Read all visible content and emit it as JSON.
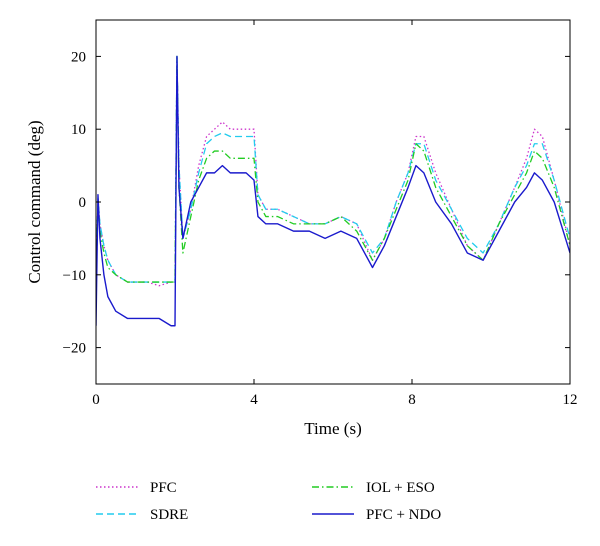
{
  "chart_data": {
    "type": "line",
    "title": "",
    "xlabel": "Time (s)",
    "ylabel": "Control command (deg)",
    "xlim": [
      0,
      12
    ],
    "ylim": [
      -25,
      25
    ],
    "xticks": [
      0,
      4,
      8,
      12
    ],
    "yticks": [
      -20,
      -10,
      0,
      10,
      20
    ],
    "xtick_labels": [
      "0",
      "4",
      "8",
      "12"
    ],
    "ytick_labels": [
      "−20",
      "−10",
      "0",
      "10",
      "20"
    ],
    "grid": false,
    "legend_position": "bottom",
    "series": [
      {
        "name": "PFC",
        "color": "#cc33cc",
        "style": "dotted",
        "x": [
          0,
          0.05,
          0.1,
          0.2,
          0.3,
          0.5,
          0.8,
          1.0,
          1.3,
          1.6,
          1.9,
          2.0,
          2.05,
          2.1,
          2.2,
          2.4,
          2.6,
          2.8,
          3.0,
          3.2,
          3.4,
          3.6,
          3.8,
          4.0,
          4.1,
          4.3,
          4.6,
          5.0,
          5.4,
          5.8,
          6.2,
          6.6,
          7.0,
          7.3,
          7.6,
          7.9,
          8.1,
          8.3,
          8.6,
          9.0,
          9.4,
          9.8,
          10.2,
          10.6,
          10.9,
          11.1,
          11.3,
          11.6,
          12.0
        ],
        "y": [
          -12,
          0.5,
          -3,
          -6,
          -8,
          -10,
          -11,
          -11,
          -11,
          -11.5,
          -11,
          -11,
          20,
          5,
          -5,
          -1,
          5,
          9,
          10,
          11,
          10,
          10,
          10,
          10,
          1,
          -1,
          -1,
          -2,
          -3,
          -3,
          -2,
          -3,
          -8,
          -5,
          0,
          4,
          9,
          9,
          4,
          -1,
          -6,
          -8,
          -3,
          2,
          6,
          10,
          9,
          3,
          -6
        ]
      },
      {
        "name": "SDRE",
        "color": "#22ccee",
        "style": "dashed",
        "x": [
          0,
          0.05,
          0.1,
          0.2,
          0.3,
          0.5,
          0.8,
          1.0,
          1.3,
          1.6,
          1.9,
          2.0,
          2.05,
          2.1,
          2.2,
          2.4,
          2.6,
          2.8,
          3.0,
          3.2,
          3.4,
          3.6,
          3.8,
          4.0,
          4.1,
          4.3,
          4.6,
          5.0,
          5.4,
          5.8,
          6.2,
          6.6,
          7.0,
          7.3,
          7.6,
          7.9,
          8.1,
          8.3,
          8.6,
          9.0,
          9.4,
          9.8,
          10.2,
          10.6,
          10.9,
          11.1,
          11.3,
          11.6,
          12.0
        ],
        "y": [
          -12,
          0.5,
          -3,
          -6,
          -8,
          -10,
          -11,
          -11,
          -11,
          -11,
          -11,
          -11,
          20,
          5,
          -5,
          -1,
          4,
          8,
          9,
          9.5,
          9,
          9,
          9,
          9,
          1,
          -1,
          -1,
          -2,
          -3,
          -3,
          -2,
          -3,
          -7,
          -5,
          0,
          4,
          8,
          8,
          3,
          -1,
          -5,
          -7,
          -3,
          2,
          5,
          8,
          8,
          3,
          -5
        ]
      },
      {
        "name": "IOL + ESO",
        "color": "#22cc22",
        "style": "dashdot",
        "x": [
          0,
          0.05,
          0.1,
          0.2,
          0.3,
          0.5,
          0.8,
          1.0,
          1.3,
          1.6,
          1.9,
          2.0,
          2.05,
          2.1,
          2.2,
          2.4,
          2.6,
          2.8,
          3.0,
          3.2,
          3.4,
          3.6,
          3.8,
          4.0,
          4.1,
          4.3,
          4.6,
          5.0,
          5.4,
          5.8,
          6.2,
          6.6,
          7.0,
          7.3,
          7.6,
          7.9,
          8.1,
          8.3,
          8.6,
          9.0,
          9.4,
          9.8,
          10.2,
          10.6,
          10.9,
          11.1,
          11.3,
          11.6,
          12.0
        ],
        "y": [
          -12,
          0,
          -4,
          -7,
          -9,
          -10,
          -11,
          -11,
          -11,
          -11,
          -11,
          -11,
          20,
          2,
          -7,
          -2,
          3,
          6,
          7,
          7,
          6,
          6,
          6,
          6,
          0,
          -2,
          -2,
          -3,
          -3,
          -3,
          -2,
          -4,
          -8,
          -5,
          -1,
          3,
          8,
          7,
          2,
          -2,
          -6,
          -8,
          -3,
          1,
          4,
          7,
          6,
          2,
          -6
        ]
      },
      {
        "name": "PFC + NDO",
        "color": "#1a1acc",
        "style": "solid",
        "x": [
          0,
          0.05,
          0.1,
          0.2,
          0.3,
          0.5,
          0.8,
          1.0,
          1.3,
          1.6,
          1.9,
          2.0,
          2.05,
          2.1,
          2.2,
          2.4,
          2.6,
          2.8,
          3.0,
          3.2,
          3.4,
          3.6,
          3.8,
          4.0,
          4.1,
          4.3,
          4.6,
          5.0,
          5.4,
          5.8,
          6.2,
          6.6,
          7.0,
          7.3,
          7.6,
          7.9,
          8.1,
          8.3,
          8.6,
          9.0,
          9.4,
          9.8,
          10.2,
          10.6,
          10.9,
          11.1,
          11.3,
          11.6,
          12.0
        ],
        "y": [
          -17,
          1,
          -5,
          -10,
          -13,
          -15,
          -16,
          -16,
          -16,
          -16,
          -17,
          -17,
          20,
          2,
          -5,
          0,
          2,
          4,
          4,
          5,
          4,
          4,
          4,
          3,
          -2,
          -3,
          -3,
          -4,
          -4,
          -5,
          -4,
          -5,
          -9,
          -6,
          -2,
          2,
          5,
          4,
          0,
          -3,
          -7,
          -8,
          -4,
          0,
          2,
          4,
          3,
          0,
          -7
        ]
      }
    ]
  }
}
